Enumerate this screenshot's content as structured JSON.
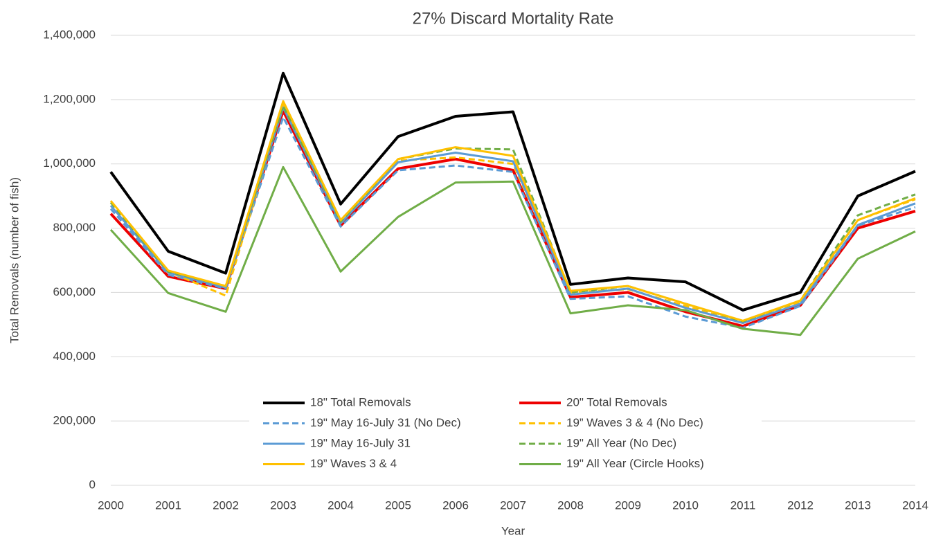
{
  "chart_data": {
    "type": "line",
    "title": "27% Discard Mortality Rate",
    "x_label": "Year",
    "y_label": "Total Removals (number of fish)",
    "x": [
      2000,
      2001,
      2002,
      2003,
      2004,
      2005,
      2006,
      2007,
      2008,
      2009,
      2010,
      2011,
      2012,
      2013,
      2014
    ],
    "xlim": [
      2000,
      2014
    ],
    "xticks": [
      2000,
      2001,
      2002,
      2003,
      2004,
      2005,
      2006,
      2007,
      2008,
      2009,
      2010,
      2011,
      2012,
      2013,
      2014
    ],
    "ylim": [
      0,
      1400000
    ],
    "yticks": [
      0,
      {
        "value": 200000,
        "label": "200,000"
      },
      {
        "value": 400000,
        "label": "400,000"
      },
      {
        "value": 600000,
        "label": "600,000"
      },
      {
        "value": 800000,
        "label": "800,000"
      },
      {
        "value": 1000000,
        "label": "1,000,000"
      },
      {
        "value": 1200000,
        "label": "1,200,000"
      },
      {
        "value": 1400000,
        "label": "1,400,000"
      }
    ],
    "grid": true,
    "legend": "bottom",
    "series": [
      {
        "name": "18\" Total Removals",
        "color": "#000000",
        "dash": false,
        "values": [
          975000,
          728000,
          660000,
          1282000,
          875000,
          1085000,
          1148000,
          1162000,
          625000,
          645000,
          633000,
          545000,
          600000,
          900000,
          977000
        ]
      },
      {
        "name": "20\" Total Removals",
        "color": "#ee0000",
        "dash": false,
        "values": [
          845000,
          650000,
          612000,
          1165000,
          808000,
          985000,
          1015000,
          980000,
          585000,
          600000,
          540000,
          495000,
          560000,
          800000,
          853000
        ]
      },
      {
        "name": "19\" May 16-July 31 (No Dec)",
        "color": "#5b9bd5",
        "dash": true,
        "values": [
          860000,
          655000,
          612000,
          1145000,
          805000,
          980000,
          995000,
          975000,
          580000,
          588000,
          525000,
          490000,
          558000,
          808000,
          865000
        ]
      },
      {
        "name": "19” Waves 3 & 4 (No Dec)",
        "color": "#ffc000",
        "dash": true,
        "values": [
          880000,
          665000,
          590000,
          1185000,
          815000,
          1010000,
          1020000,
          1000000,
          600000,
          610000,
          558000,
          505000,
          570000,
          825000,
          890000
        ]
      },
      {
        "name": "19\" May 16-July 31",
        "color": "#5b9bd5",
        "dash": false,
        "values": [
          870000,
          662000,
          615000,
          1175000,
          815000,
          1005000,
          1035000,
          1008000,
          593000,
          612000,
          552000,
          505000,
          565000,
          810000,
          877000
        ]
      },
      {
        "name": "19\" All Year (No Dec)",
        "color": "#70ad47",
        "dash": true,
        "values": [
          880000,
          665000,
          620000,
          1180000,
          820000,
          1015000,
          1048000,
          1045000,
          600000,
          620000,
          565000,
          510000,
          575000,
          840000,
          905000
        ]
      },
      {
        "name": "19” Waves 3 & 4",
        "color": "#ffc000",
        "dash": false,
        "values": [
          885000,
          668000,
          620000,
          1195000,
          825000,
          1015000,
          1052000,
          1025000,
          605000,
          620000,
          565000,
          512000,
          575000,
          825000,
          893000
        ]
      },
      {
        "name": "19\" All Year (Circle Hooks)",
        "color": "#70ad47",
        "dash": false,
        "values": [
          795000,
          598000,
          540000,
          990000,
          665000,
          835000,
          942000,
          945000,
          535000,
          560000,
          545000,
          487000,
          468000,
          705000,
          790000
        ]
      }
    ]
  }
}
